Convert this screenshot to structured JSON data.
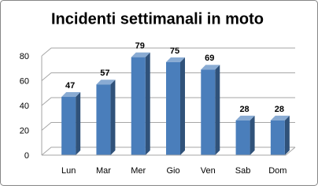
{
  "chart_data": {
    "type": "bar",
    "title": "Incidenti settimanali in moto",
    "categories": [
      "Lun",
      "Mar",
      "Mer",
      "Gio",
      "Ven",
      "Sab",
      "Dom"
    ],
    "values": [
      47,
      57,
      79,
      75,
      69,
      28,
      28
    ],
    "color": "#4a7ebb",
    "ylim": [
      0,
      80
    ],
    "yticks": [
      0,
      20,
      40,
      60,
      80
    ],
    "grid": true
  }
}
